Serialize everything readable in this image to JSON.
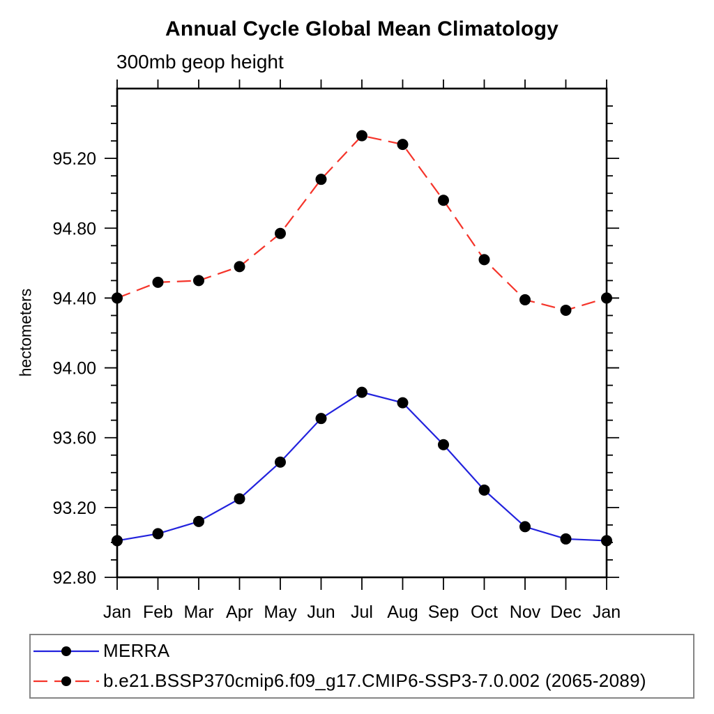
{
  "page": {
    "title": "Annual Cycle Global Mean Climatology",
    "subtitle": "300mb geop height",
    "ylabel": "hectometers"
  },
  "legend": {
    "entries": [
      {
        "label": "MERRA",
        "color": "#2222dd",
        "line_style": "solid",
        "marker": "filled-circle-black"
      },
      {
        "label": "b.e21.BSSP370cmip6.f09_g17.CMIP6-SSP3-7.0.002 (2065-2089)",
        "color": "#f5342a",
        "line_style": "dashed",
        "marker": "filled-circle-black"
      }
    ]
  },
  "chart_data": {
    "type": "line",
    "title": "Annual Cycle Global Mean Climatology",
    "subtitle": "300mb geop height",
    "xlabel": "",
    "ylabel": "hectometers",
    "categories": [
      "Jan",
      "Feb",
      "Mar",
      "Apr",
      "May",
      "Jun",
      "Jul",
      "Aug",
      "Sep",
      "Oct",
      "Nov",
      "Dec",
      "Jan"
    ],
    "series": [
      {
        "name": "MERRA",
        "color": "#2222dd",
        "line_style": "solid",
        "marker": "filled-circle-black",
        "values": [
          93.01,
          93.05,
          93.12,
          93.25,
          93.46,
          93.71,
          93.86,
          93.8,
          93.56,
          93.3,
          93.09,
          93.02,
          93.01
        ]
      },
      {
        "name": "b.e21.BSSP370cmip6.f09_g17.CMIP6-SSP3-7.0.002 (2065-2089)",
        "color": "#f5342a",
        "line_style": "dashed",
        "marker": "filled-circle-black",
        "values": [
          94.4,
          94.49,
          94.5,
          94.58,
          94.77,
          95.08,
          95.33,
          95.28,
          94.96,
          94.62,
          94.39,
          94.33,
          94.4
        ]
      }
    ],
    "ylim": [
      92.8,
      95.6
    ],
    "ytick_major_step": 0.4,
    "ytick_minor_step": 0.1,
    "ytick_labels": [
      "92.80",
      "93.20",
      "93.60",
      "94.00",
      "94.40",
      "94.80",
      "95.20"
    ],
    "grid": false,
    "legend_position": "bottom-left-box",
    "marker_color": "#000000"
  }
}
